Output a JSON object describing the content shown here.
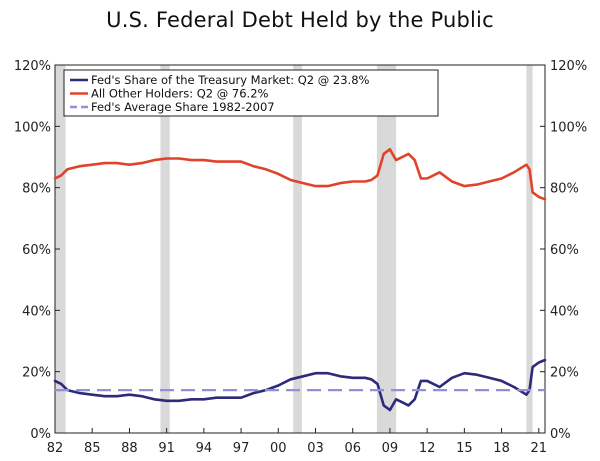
{
  "chart_data": {
    "type": "line",
    "title": "U.S. Federal Debt Held by the Public",
    "xlabel": "",
    "ylabel": "",
    "xlim": [
      1982,
      2021.5
    ],
    "ylim": [
      0,
      120
    ],
    "x_ticks": [
      1982,
      1985,
      1988,
      1991,
      1994,
      1997,
      2000,
      2003,
      2006,
      2009,
      2012,
      2015,
      2018,
      2021
    ],
    "x_tick_labels": [
      "82",
      "85",
      "88",
      "91",
      "94",
      "97",
      "00",
      "03",
      "06",
      "09",
      "12",
      "15",
      "18",
      "21"
    ],
    "y_ticks": [
      0,
      20,
      40,
      60,
      80,
      100,
      120
    ],
    "y_tick_labels": [
      "0%",
      "20%",
      "40%",
      "60%",
      "80%",
      "100%",
      "120%"
    ],
    "recessions": [
      [
        1982.0,
        1982.85
      ],
      [
        1990.5,
        1991.25
      ],
      [
        2001.2,
        2001.9
      ],
      [
        2007.95,
        2009.5
      ],
      [
        2020.0,
        2020.5
      ]
    ],
    "series": [
      {
        "name": "Fed's Share of the Treasury Market: Q2 @ 23.8%",
        "color": "#2e2a7a",
        "style": "solid",
        "x": [
          1982.0,
          1982.5,
          1983.0,
          1984.0,
          1985.0,
          1986.0,
          1987.0,
          1988.0,
          1989.0,
          1990.0,
          1991.0,
          1992.0,
          1993.0,
          1994.0,
          1995.0,
          1996.0,
          1997.0,
          1998.0,
          1999.0,
          2000.0,
          2001.0,
          2002.0,
          2003.0,
          2004.0,
          2005.0,
          2006.0,
          2007.0,
          2007.5,
          2008.0,
          2008.5,
          2009.0,
          2009.5,
          2010.0,
          2010.5,
          2011.0,
          2011.5,
          2012.0,
          2013.0,
          2014.0,
          2015.0,
          2016.0,
          2017.0,
          2018.0,
          2019.0,
          2019.8,
          2020.0,
          2020.25,
          2020.5,
          2021.0,
          2021.5
        ],
        "values": [
          17,
          16,
          14,
          13,
          12.5,
          12,
          12,
          12.5,
          12,
          11,
          10.5,
          10.5,
          11,
          11,
          11.5,
          11.5,
          11.5,
          13,
          14,
          15.5,
          17.5,
          18.5,
          19.5,
          19.5,
          18.5,
          18,
          18,
          17.5,
          16,
          9,
          7.5,
          11,
          10,
          9,
          11,
          17,
          17,
          15,
          18,
          19.5,
          19,
          18,
          17,
          15,
          13,
          12.5,
          14,
          21.5,
          23,
          23.8
        ]
      },
      {
        "name": "All Other Holders: Q2 @ 76.2%",
        "color": "#e0432a",
        "style": "solid",
        "x": [
          1982.0,
          1982.5,
          1983.0,
          1984.0,
          1985.0,
          1986.0,
          1987.0,
          1988.0,
          1989.0,
          1990.0,
          1991.0,
          1992.0,
          1993.0,
          1994.0,
          1995.0,
          1996.0,
          1997.0,
          1998.0,
          1999.0,
          2000.0,
          2001.0,
          2002.0,
          2003.0,
          2004.0,
          2005.0,
          2006.0,
          2007.0,
          2007.5,
          2008.0,
          2008.5,
          2009.0,
          2009.5,
          2010.0,
          2010.5,
          2011.0,
          2011.5,
          2012.0,
          2013.0,
          2014.0,
          2015.0,
          2016.0,
          2017.0,
          2018.0,
          2019.0,
          2019.8,
          2020.0,
          2020.25,
          2020.5,
          2021.0,
          2021.5
        ],
        "values": [
          83,
          84,
          86,
          87,
          87.5,
          88,
          88,
          87.5,
          88,
          89,
          89.5,
          89.5,
          89,
          89,
          88.5,
          88.5,
          88.5,
          87,
          86,
          84.5,
          82.5,
          81.5,
          80.5,
          80.5,
          81.5,
          82,
          82,
          82.5,
          84,
          91,
          92.5,
          89,
          90,
          91,
          89,
          83,
          83,
          85,
          82,
          80.5,
          81,
          82,
          83,
          85,
          87,
          87.5,
          86,
          78.5,
          77,
          76.2
        ]
      },
      {
        "name": "Fed's Average Share 1982-2007",
        "color": "#8f8fdb",
        "style": "dashed",
        "x": [
          1982.0,
          2021.5
        ],
        "values": [
          14,
          14
        ]
      }
    ],
    "legend_location": "top-left"
  }
}
